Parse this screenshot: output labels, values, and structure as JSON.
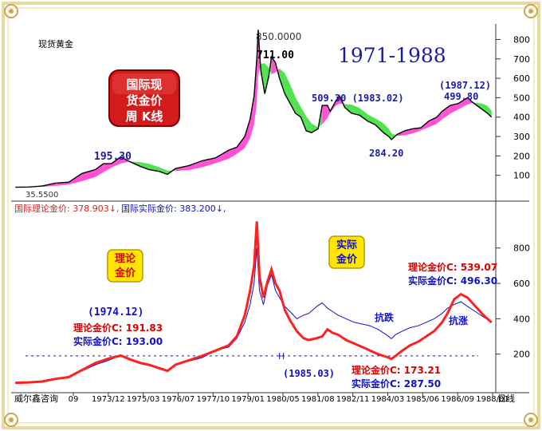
{
  "chart_data": [
    {
      "type": "line",
      "panel": "top",
      "title": "现货黄金",
      "period_label": "1971-1988",
      "badge": "国际现货金价周 K线",
      "ylim": [
        0,
        880
      ],
      "y_ticks": [
        100,
        200,
        300,
        400,
        500,
        600,
        700,
        800
      ],
      "series": [
        {
          "x": [
            1971.0,
            1971.5,
            1972.0,
            1972.5,
            1973.0,
            1973.5,
            1974.0,
            1974.3,
            1974.6,
            1974.95,
            1975.3,
            1975.7,
            1976.0,
            1976.4,
            1976.7,
            1977.0,
            1977.5,
            1978.0,
            1978.5,
            1979.0,
            1979.3,
            1979.6,
            1979.8,
            1979.95,
            1980.05,
            1980.1,
            1980.2,
            1980.35,
            1980.5,
            1980.6,
            1980.75,
            1980.9,
            1981.1,
            1981.3,
            1981.5,
            1981.7,
            1981.9,
            1982.1,
            1982.35,
            1982.5,
            1982.7,
            1982.8,
            1983.0,
            1983.15,
            1983.35,
            1983.6,
            1983.9,
            1984.2,
            1984.5,
            1984.8,
            1985.0,
            1985.1,
            1985.3,
            1985.6,
            1985.9,
            1986.2,
            1986.5,
            1986.8,
            1987.0,
            1987.3,
            1987.6,
            1987.95,
            1988.2,
            1988.5,
            1988.7,
            1988.85
          ],
          "values": [
            38.5,
            40,
            45,
            60,
            65,
            110,
            130,
            160,
            160,
            195.3,
            170,
            145,
            130,
            120,
            105,
            135,
            150,
            175,
            190,
            230,
            245,
            300,
            390,
            510,
            700,
            850,
            640,
            520,
            610,
            711,
            680,
            600,
            520,
            470,
            420,
            400,
            330,
            320,
            340,
            460,
            460,
            430,
            480,
            509.3,
            450,
            420,
            410,
            380,
            360,
            320,
            300,
            284.2,
            310,
            330,
            340,
            345,
            380,
            400,
            430,
            460,
            470,
            499.8,
            470,
            440,
            420,
            400
          ]
        }
      ],
      "annotations": [
        "850.0000",
        "711.00",
        "195.30",
        "509.30 (1983.02)",
        "(1987.12)",
        "499.80",
        "284.20",
        "35.5500"
      ]
    },
    {
      "type": "line",
      "panel": "bottom",
      "legend_text": [
        "国际理论金价: 378.903↓,",
        "国际实际金价: 383.200↓,"
      ],
      "ylim": [
        0,
        1020
      ],
      "y_ticks": [
        200,
        400,
        600,
        800
      ],
      "reference_line": {
        "value": 190,
        "label": "H"
      },
      "x_ticks": [
        "09",
        "1973/12",
        "1975/03",
        "1976/07",
        "1977/10",
        "1979/01",
        "1980/05",
        "1981/08",
        "1982/11",
        "1984/03",
        "1985/06",
        "1986/09",
        "1988/01"
      ],
      "x_axis_right_label": "日线",
      "callouts": [
        "理论金价",
        "实际金价"
      ],
      "series": [
        {
          "name": "理论金价",
          "color": "#ff2020",
          "x": [
            1971.0,
            1971.5,
            1972.0,
            1972.5,
            1973.0,
            1973.5,
            1974.0,
            1974.5,
            1974.95,
            1975.3,
            1975.7,
            1976.0,
            1976.4,
            1976.7,
            1977.0,
            1977.5,
            1978.0,
            1978.5,
            1979.0,
            1979.3,
            1979.6,
            1979.8,
            1979.95,
            1980.05,
            1980.15,
            1980.3,
            1980.45,
            1980.6,
            1980.75,
            1980.9,
            1981.1,
            1981.3,
            1981.55,
            1981.8,
            1982.0,
            1982.3,
            1982.5,
            1982.7,
            1982.9,
            1983.1,
            1983.4,
            1983.7,
            1984.0,
            1984.3,
            1984.6,
            1984.9,
            1985.1,
            1985.25,
            1985.5,
            1985.8,
            1986.1,
            1986.4,
            1986.7,
            1987.0,
            1987.2,
            1987.45,
            1987.7,
            1987.95,
            1988.25,
            1988.55,
            1988.85
          ],
          "values": [
            38,
            40,
            45,
            60,
            70,
            110,
            150,
            175,
            191.83,
            170,
            150,
            140,
            120,
            105,
            140,
            165,
            190,
            220,
            250,
            300,
            420,
            560,
            700,
            950,
            640,
            520,
            610,
            680,
            600,
            560,
            450,
            390,
            330,
            290,
            280,
            290,
            300,
            340,
            320,
            310,
            280,
            260,
            240,
            220,
            200,
            185,
            173.21,
            190,
            220,
            250,
            270,
            300,
            330,
            380,
            430,
            510,
            539.07,
            520,
            470,
            420,
            378.9
          ]
        },
        {
          "name": "实际金价",
          "color": "#1010cc",
          "x": [
            1971.0,
            1971.5,
            1972.0,
            1972.5,
            1973.0,
            1973.5,
            1974.0,
            1974.5,
            1974.95,
            1975.3,
            1975.7,
            1976.0,
            1976.4,
            1976.7,
            1977.0,
            1977.5,
            1978.0,
            1978.5,
            1979.0,
            1979.3,
            1979.6,
            1979.8,
            1979.95,
            1980.05,
            1980.15,
            1980.3,
            1980.45,
            1980.6,
            1980.75,
            1980.9,
            1981.1,
            1981.3,
            1981.55,
            1981.8,
            1982.0,
            1982.3,
            1982.5,
            1982.7,
            1982.9,
            1983.1,
            1983.4,
            1983.7,
            1984.0,
            1984.3,
            1984.6,
            1984.9,
            1985.1,
            1985.25,
            1985.5,
            1985.8,
            1986.1,
            1986.4,
            1986.7,
            1987.0,
            1987.2,
            1987.45,
            1987.7,
            1987.95,
            1988.25,
            1988.55,
            1988.85
          ],
          "values": [
            38,
            40,
            45,
            60,
            68,
            105,
            140,
            165,
            193,
            165,
            145,
            135,
            125,
            110,
            140,
            160,
            180,
            220,
            240,
            290,
            380,
            480,
            600,
            800,
            560,
            480,
            590,
            650,
            560,
            520,
            470,
            440,
            400,
            420,
            430,
            470,
            490,
            460,
            440,
            420,
            400,
            380,
            370,
            360,
            340,
            310,
            287.5,
            310,
            330,
            350,
            360,
            380,
            400,
            430,
            460,
            480,
            496.3,
            470,
            440,
            410,
            383.2
          ]
        }
      ],
      "annotations": [
        "(1974.12)",
        "理论金价C: 191.83",
        "实际金价C: 193.00",
        "(1985.03)",
        "理论金价C: 173.21",
        "实际金价C: 287.50",
        "理论金价C: 539.07",
        "实际金价C: 496.30",
        "抗跌",
        "抗涨"
      ]
    }
  ],
  "footer": {
    "company": "威尔鑫咨询"
  }
}
